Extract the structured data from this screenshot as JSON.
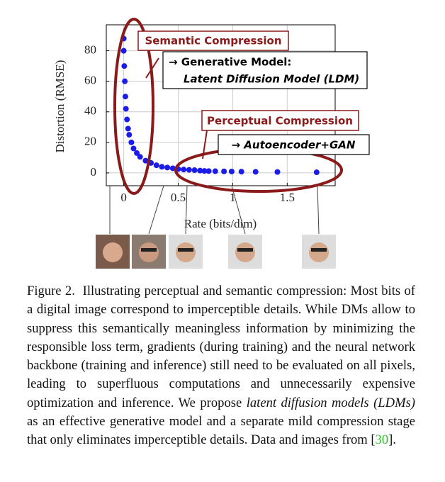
{
  "chart_data": {
    "type": "scatter",
    "xlabel": "Rate (bits/dim)",
    "ylabel": "Distortion (RMSE)",
    "x": [
      0.0,
      0.0,
      0.005,
      0.01,
      0.015,
      0.02,
      0.03,
      0.04,
      0.05,
      0.07,
      0.09,
      0.12,
      0.15,
      0.2,
      0.25,
      0.3,
      0.35,
      0.4,
      0.45,
      0.5,
      0.55,
      0.6,
      0.65,
      0.7,
      0.74,
      0.78,
      0.84,
      0.92,
      0.99,
      1.08,
      1.21,
      1.41,
      1.77
    ],
    "values": [
      88,
      80,
      70,
      60,
      50,
      42,
      35,
      29,
      25,
      20,
      16,
      13,
      10.5,
      8,
      6.5,
      5,
      4,
      3.5,
      3,
      2.5,
      2.2,
      2,
      1.8,
      1.5,
      1.3,
      1.2,
      1.1,
      1.0,
      0.9,
      0.8,
      0.7,
      0.6,
      0.4
    ],
    "color": "#1c1ce8",
    "xlim": [
      -0.16,
      1.94
    ],
    "ylim": [
      -8.4,
      97
    ],
    "xticks": [
      0,
      0.5,
      1,
      1.5
    ],
    "yticks": [
      0,
      20,
      40,
      60,
      80
    ],
    "grid": true,
    "annotations": [
      "Semantic Compression",
      "→ Generative Model:",
      "Latent Diffusion Model (LDM)",
      "Perceptual Compression",
      "→ Autoencoder+GAN"
    ]
  },
  "caption": {
    "label": "Figure 2.",
    "text": "Illustrating perceptual and semantic compression: Most bits of a digital image correspond to imperceptible details. While DMs allow to suppress this semantically meaningless information by minimizing the responsible loss term, gradients (during training) and the neural network backbone (training and inference) still need to be evaluated on all pixels, leading to superfluous computations and unnecessarily expensive optimization and inference.",
    "lead": "We propose",
    "emphasis": "latent diffusion models (LDMs)",
    "rest": "as an effective generative model and a separate mild compression stage that only eliminates imperceptible details. Data and images from [",
    "citation": "30",
    "close": "]."
  }
}
